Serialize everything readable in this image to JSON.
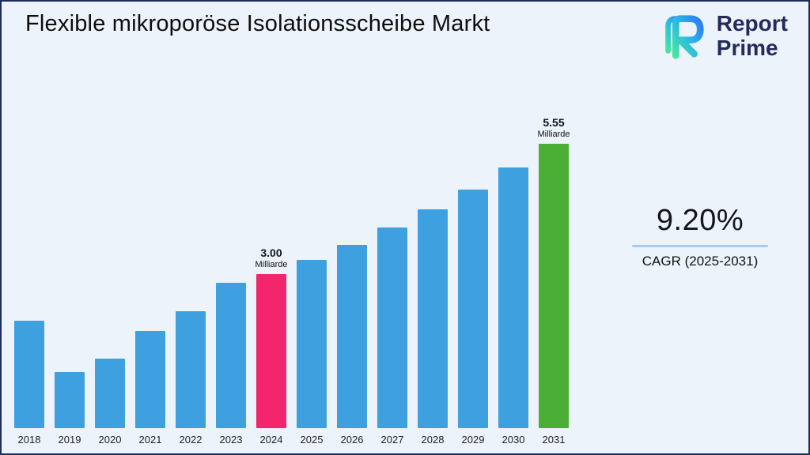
{
  "page": {
    "title": "Flexible mikroporöse Isolationsscheibe Markt",
    "background_color": "#edf3fb",
    "border_color": "#1c2e58"
  },
  "logo": {
    "icon": "report-prime-logo-icon",
    "line1": "Report",
    "line2": "Prime",
    "text_color": "#232a5c",
    "icon_gradient_start": "#43e6a0",
    "icon_gradient_end": "#2e7bf6"
  },
  "cagr": {
    "value": "9.20%",
    "label": "CAGR (2025-2031)",
    "underline_color": "#a9c9f0"
  },
  "chart_data": {
    "type": "bar",
    "title": "Flexible mikroporöse Isolationsscheibe Markt",
    "unit": "Milliarde",
    "categories": [
      "2018",
      "2019",
      "2020",
      "2021",
      "2022",
      "2023",
      "2024",
      "2025",
      "2026",
      "2027",
      "2028",
      "2029",
      "2030",
      "2031"
    ],
    "values": [
      2.1,
      1.09,
      1.35,
      1.89,
      2.28,
      2.84,
      3.0,
      3.28,
      3.58,
      3.91,
      4.27,
      4.66,
      5.09,
      5.55
    ],
    "ylim": [
      0,
      5.55
    ],
    "grid": false,
    "legend": false,
    "default_bar_color": "#3fa0df",
    "highlights": [
      {
        "category": "2024",
        "color": "#f3256d"
      },
      {
        "category": "2031",
        "color": "#4bae35"
      }
    ],
    "annotations": [
      {
        "category": "2024",
        "value_label": "3.00",
        "unit_label": "Milliarde"
      },
      {
        "category": "2031",
        "value_label": "5.55",
        "unit_label": "Milliarde"
      }
    ]
  }
}
